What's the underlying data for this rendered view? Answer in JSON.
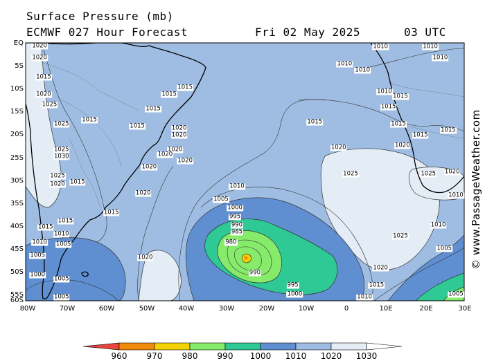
{
  "header": {
    "line1_left": "Surface Pressure (mb)",
    "line2_left": "ECMWF 027 Hour Forecast",
    "date": "Fri 02 May 2025",
    "time": "03 UTC"
  },
  "watermark": "© www.PassageWeather.com",
  "axes": {
    "lat_labels": [
      "EQ",
      "5S",
      "10S",
      "15S",
      "20S",
      "25S",
      "30S",
      "35S",
      "40S",
      "45S",
      "50S",
      "55S",
      "60S"
    ],
    "lon_labels": [
      "80W",
      "70W",
      "60W",
      "50W",
      "40W",
      "30W",
      "20W",
      "10W",
      "0",
      "10E",
      "20E",
      "30E"
    ]
  },
  "colorbar": {
    "labels": [
      "960",
      "970",
      "980",
      "990",
      "1000",
      "1010",
      "1020",
      "1030"
    ],
    "colors": [
      "#e8463c",
      "#ef8a0a",
      "#f2d200",
      "#86ea6a",
      "#2ec994",
      "#5f8fd1",
      "#9fbde2",
      "#e4ecf5"
    ]
  },
  "fill_colors": {
    "lt1000": "#2ec994",
    "990_1000": "#86ea6a",
    "980_990": "#f2d200",
    "1000_1010": "#5f8fd1",
    "1010_1020": "#9fbde2",
    "gt1020": "#e4ecf5",
    "land_line": "#000000"
  },
  "contour_labels": [
    {
      "text": "1020",
      "lon": -76.5,
      "lat": -0.5
    },
    {
      "text": "1020",
      "lon": -76.5,
      "lat": -3.5
    },
    {
      "text": "1015",
      "lon": -75.5,
      "lat": -8
    },
    {
      "text": "1020",
      "lon": -75.5,
      "lat": -12
    },
    {
      "text": "1025",
      "lon": -74,
      "lat": -14.5
    },
    {
      "text": "1015",
      "lon": -64,
      "lat": -18
    },
    {
      "text": "1025",
      "lon": -71,
      "lat": -19
    },
    {
      "text": "1025",
      "lon": -71,
      "lat": -25
    },
    {
      "text": "1030",
      "lon": -71,
      "lat": -26.5
    },
    {
      "text": "1025",
      "lon": -72,
      "lat": -31
    },
    {
      "text": "1020",
      "lon": -72,
      "lat": -33
    },
    {
      "text": "1015",
      "lon": -67,
      "lat": -32.5
    },
    {
      "text": "1015",
      "lon": -48,
      "lat": -15.5
    },
    {
      "text": "1015",
      "lon": -52,
      "lat": -19.5
    },
    {
      "text": "1015",
      "lon": -44,
      "lat": -12
    },
    {
      "text": "1015",
      "lon": -40,
      "lat": -10.5
    },
    {
      "text": "1020",
      "lon": -41.5,
      "lat": -20
    },
    {
      "text": "1020",
      "lon": -41.5,
      "lat": -21.5
    },
    {
      "text": "1020",
      "lon": -42.5,
      "lat": -25
    },
    {
      "text": "1020",
      "lon": -45,
      "lat": -26
    },
    {
      "text": "1020",
      "lon": -40,
      "lat": -27.5
    },
    {
      "text": "1020",
      "lon": -49,
      "lat": -29
    },
    {
      "text": "1020",
      "lon": -50.5,
      "lat": -35
    },
    {
      "text": "1015",
      "lon": -58.5,
      "lat": -39.5
    },
    {
      "text": "1015",
      "lon": -75,
      "lat": -43
    },
    {
      "text": "1015",
      "lon": -70,
      "lat": -41.5
    },
    {
      "text": "1010",
      "lon": -71,
      "lat": -44.5
    },
    {
      "text": "1010",
      "lon": -76.5,
      "lat": -46.5
    },
    {
      "text": "1005",
      "lon": -77,
      "lat": -49.5
    },
    {
      "text": "1005",
      "lon": -70.5,
      "lat": -47
    },
    {
      "text": "1000",
      "lon": -77,
      "lat": -54
    },
    {
      "text": "1005",
      "lon": -71,
      "lat": -55
    },
    {
      "text": "1005",
      "lon": -71,
      "lat": -59.5
    },
    {
      "text": "1015",
      "lon": -7.5,
      "lat": -18.5
    },
    {
      "text": "1020",
      "lon": -1.5,
      "lat": -24.5
    },
    {
      "text": "1025",
      "lon": 1.5,
      "lat": -30.5
    },
    {
      "text": "1025",
      "lon": 14,
      "lat": -45
    },
    {
      "text": "1020",
      "lon": 9,
      "lat": -52.5
    },
    {
      "text": "1015",
      "lon": 8,
      "lat": -56.5
    },
    {
      "text": "1010",
      "lon": 5,
      "lat": -59.5
    },
    {
      "text": "1010",
      "lon": -27,
      "lat": -33.5
    },
    {
      "text": "1005",
      "lon": -31,
      "lat": -36.5
    },
    {
      "text": "1000",
      "lon": -27.5,
      "lat": -38.5
    },
    {
      "text": "995",
      "lon": -27.5,
      "lat": -40.5
    },
    {
      "text": "990",
      "lon": -27,
      "lat": -42.5
    },
    {
      "text": "985",
      "lon": -27,
      "lat": -44
    },
    {
      "text": "980",
      "lon": -28.5,
      "lat": -46.5
    },
    {
      "text": "990",
      "lon": -22.5,
      "lat": -53.5
    },
    {
      "text": "995",
      "lon": -13,
      "lat": -56.5
    },
    {
      "text": "1000",
      "lon": -12.5,
      "lat": -58.5
    },
    {
      "text": "1020",
      "lon": -50,
      "lat": -50
    },
    {
      "text": "1010",
      "lon": 0,
      "lat": -5
    },
    {
      "text": "1010",
      "lon": 9,
      "lat": -1
    },
    {
      "text": "1010",
      "lon": 4.5,
      "lat": -6.5
    },
    {
      "text": "1010",
      "lon": 10,
      "lat": -11.5
    },
    {
      "text": "1015",
      "lon": 14,
      "lat": -12.5
    },
    {
      "text": "1015",
      "lon": 11,
      "lat": -15
    },
    {
      "text": "1015",
      "lon": 13.5,
      "lat": -19
    },
    {
      "text": "1015",
      "lon": 19,
      "lat": -21.5
    },
    {
      "text": "1015",
      "lon": 26,
      "lat": -20.5
    },
    {
      "text": "1020",
      "lon": 14.5,
      "lat": -24
    },
    {
      "text": "1025",
      "lon": 21,
      "lat": -30.5
    },
    {
      "text": "1020",
      "lon": 27,
      "lat": -30
    },
    {
      "text": "1010",
      "lon": 23.5,
      "lat": -42.5
    },
    {
      "text": "1005",
      "lon": 25,
      "lat": -48
    },
    {
      "text": "1010",
      "lon": 29,
      "lat": -35.5
    },
    {
      "text": "1010",
      "lon": 21.5,
      "lat": -1
    },
    {
      "text": "1010",
      "lon": 24,
      "lat": -3.5
    },
    {
      "text": "1005",
      "lon": 28,
      "lat": -58.5
    }
  ]
}
